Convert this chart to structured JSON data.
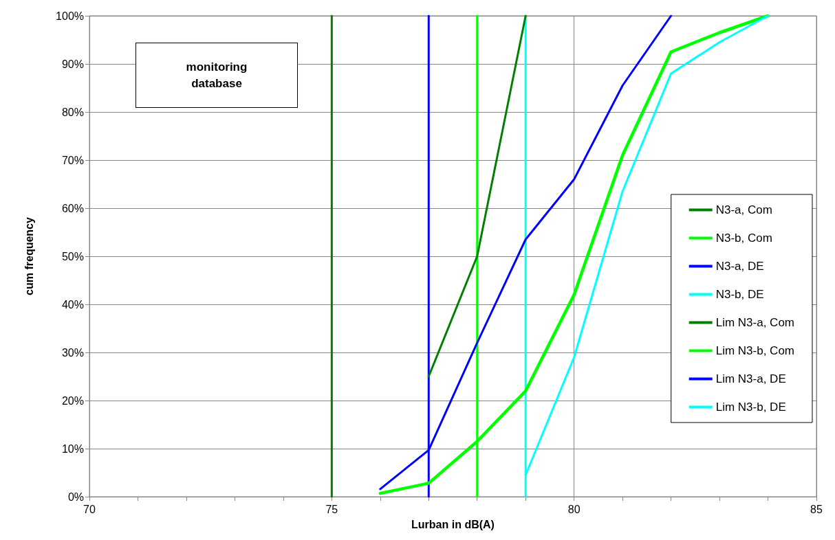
{
  "chart_data": {
    "type": "line",
    "xlabel": "Lurban in dB(A)",
    "ylabel": "cum frequency",
    "annotations": [
      "monitoring database"
    ],
    "xlim": [
      70,
      85
    ],
    "xticks": [
      70,
      {
        "value": 71,
        "label": null
      },
      {
        "value": 72,
        "label": null
      },
      {
        "value": 73,
        "label": null
      },
      {
        "value": 74,
        "label": null
      },
      75,
      {
        "value": 76,
        "label": null
      },
      {
        "value": 77,
        "label": null
      },
      {
        "value": 78,
        "label": null
      },
      {
        "value": 79,
        "label": null
      },
      80,
      {
        "value": 81,
        "label": null
      },
      {
        "value": 82,
        "label": null
      },
      {
        "value": 83,
        "label": null
      },
      {
        "value": 84,
        "label": null
      },
      85
    ],
    "ylim": [
      0,
      100
    ],
    "yticks": [
      {
        "value": 0,
        "label": "0%"
      },
      {
        "value": 10,
        "label": "10%"
      },
      {
        "value": 20,
        "label": "20%"
      },
      {
        "value": 30,
        "label": "30%"
      },
      {
        "value": 40,
        "label": "40%"
      },
      {
        "value": 50,
        "label": "50%"
      },
      {
        "value": 60,
        "label": "60%"
      },
      {
        "value": 70,
        "label": "70%"
      },
      {
        "value": 80,
        "label": "80%"
      },
      {
        "value": 90,
        "label": "90%"
      },
      {
        "value": 100,
        "label": "100%"
      }
    ],
    "grid": true,
    "legend": "right",
    "marker": "none",
    "line_style": "solid",
    "series": [
      {
        "name": "N3-a, Com",
        "color": "#008000",
        "x": [
          77,
          78,
          79
        ],
        "values": [
          25,
          50,
          100
        ]
      },
      {
        "name": "N3-b, Com",
        "color": "#00ff00",
        "x": [
          76,
          77,
          78,
          79,
          80,
          81,
          82,
          83,
          84
        ],
        "values": [
          0.7,
          2.8,
          11.5,
          22,
          42,
          71,
          92.5,
          96.5,
          100
        ]
      },
      {
        "name": "N3-a, DE",
        "color": "#0000ff",
        "x": [
          76,
          77,
          78,
          79,
          80,
          81,
          82
        ],
        "values": [
          1.6,
          9.7,
          32,
          53.5,
          66,
          85.5,
          100
        ]
      },
      {
        "name": "N3-b, DE",
        "color": "#00ffff",
        "x": [
          79,
          80,
          81,
          82,
          83,
          84
        ],
        "values": [
          4.5,
          29,
          63.5,
          88,
          94.5,
          100
        ]
      },
      {
        "name": "Lim N3-a, Com",
        "color": "#008000",
        "x": [
          75,
          75
        ],
        "values": [
          0,
          100
        ]
      },
      {
        "name": "Lim N3-b, Com",
        "color": "#00ff00",
        "x": [
          78,
          78
        ],
        "values": [
          0,
          100
        ]
      },
      {
        "name": "Lim N3-a, DE",
        "color": "#0000ff",
        "x": [
          77,
          77
        ],
        "values": [
          0,
          100
        ]
      },
      {
        "name": "Lim N3-b, DE",
        "color": "#00ffff",
        "x": [
          79,
          79
        ],
        "values": [
          0,
          100
        ]
      }
    ]
  }
}
